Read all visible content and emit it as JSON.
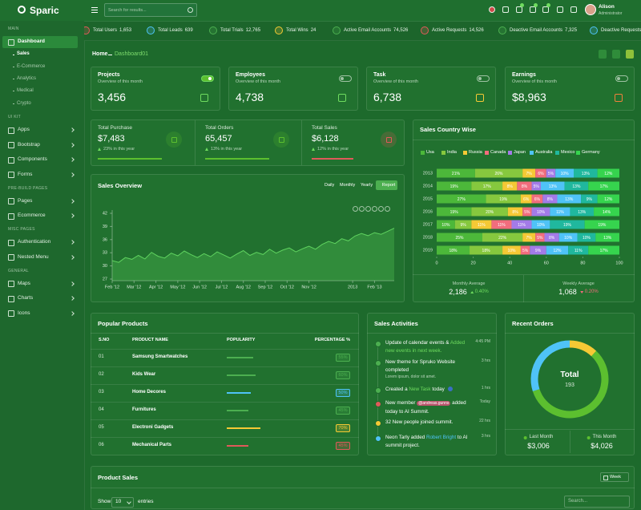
{
  "header": {
    "brand": "Sparic",
    "search_placeholder": "Search for results...",
    "user_name": "Alison",
    "user_role": "Administrator"
  },
  "sidebar": {
    "sections": [
      {
        "title": "MAIN",
        "items": [
          {
            "label": "Dashboard",
            "children": [
              "Sales",
              "E-Commerce",
              "Analytics",
              "Medical",
              "Crypto"
            ]
          }
        ]
      },
      {
        "title": "UI KIT",
        "items": [
          {
            "label": "Apps"
          },
          {
            "label": "Bootstrap"
          },
          {
            "label": "Components"
          },
          {
            "label": "Forms"
          }
        ]
      },
      {
        "title": "PRE-BUILD PAGES",
        "items": [
          {
            "label": "Pages"
          },
          {
            "label": "Ecommerce"
          }
        ]
      },
      {
        "title": "MISC PAGES",
        "items": [
          {
            "label": "Authentication"
          },
          {
            "label": "Nested Menu"
          }
        ]
      },
      {
        "title": "GENERAL",
        "items": [
          {
            "label": "Maps"
          },
          {
            "label": "Charts"
          },
          {
            "label": "Icons"
          }
        ]
      }
    ]
  },
  "ticker": [
    {
      "label": "Total Users",
      "value": "1,653"
    },
    {
      "label": "Total Leads",
      "value": "639"
    },
    {
      "label": "Total Trials",
      "value": "12,765"
    },
    {
      "label": "Total Wins",
      "value": "24"
    },
    {
      "label": "Active Email Accounts",
      "value": "74,526"
    },
    {
      "label": "Active Requests",
      "value": "14,526"
    },
    {
      "label": "Deactive Email Accounts",
      "value": "7,325"
    },
    {
      "label": "Deactive Requests"
    }
  ],
  "breadcrumb": {
    "home": "Home",
    "current": "Dashboard01"
  },
  "stat_cards": [
    {
      "title": "Projects",
      "subtitle": "Overview of this month",
      "value": "3,456"
    },
    {
      "title": "Employees",
      "subtitle": "Overview of this month",
      "value": "4,738"
    },
    {
      "title": "Task",
      "subtitle": "Overview of this month",
      "value": "6,738"
    },
    {
      "title": "Earnings",
      "subtitle": "Overview of this month",
      "value": "$8,963"
    }
  ],
  "summary": [
    {
      "title": "Total Purchase",
      "value": "$7,483",
      "change": "23% in this year"
    },
    {
      "title": "Total Orders",
      "value": "65,457",
      "change": "13% in this year"
    },
    {
      "title": "Total Sales",
      "value": "$6,128",
      "change": "12% in this year"
    }
  ],
  "sales_overview": {
    "type": "area",
    "title": "Sales Overview",
    "tabs": [
      "Daily",
      "Monthly",
      "Yearly"
    ],
    "button": "Report",
    "x": [
      0,
      0.3,
      0.6,
      0.9,
      1.2,
      1.5,
      1.8,
      2.1,
      2.4,
      2.7,
      3,
      3.3,
      3.6,
      3.9,
      4.2,
      4.5,
      4.8,
      5.1,
      5.4,
      5.7,
      6,
      6.3,
      6.6,
      6.9,
      7.2,
      7.5,
      7.8,
      8.1,
      8.4,
      8.7,
      9,
      9.3,
      9.6,
      9.9,
      10.2,
      10.5,
      10.8,
      11.1,
      11.4,
      11.7,
      12,
      12.3,
      12.6,
      12.9
    ],
    "values": [
      31.2,
      30.8,
      31.9,
      31.5,
      32.4,
      31.6,
      33.1,
      32.2,
      31.8,
      32.9,
      32.3,
      33.4,
      32.6,
      31.9,
      32.8,
      32.1,
      33.2,
      32.5,
      31.8,
      32.7,
      33.5,
      32.4,
      33.1,
      32.6,
      33.8,
      32.9,
      33.6,
      34.1,
      33.2,
      33.9,
      34.5,
      33.8,
      34.9,
      35.6,
      35.1,
      36.2,
      35.7,
      36.8,
      37.4,
      36.9,
      37.6,
      37.2,
      37.9,
      38.6
    ],
    "color": "#5fd35f",
    "xlim": [
      0,
      12.9
    ],
    "xticks": [
      {
        "value": 0,
        "label": "Feb '12"
      },
      {
        "value": 1,
        "label": "Mar '12"
      },
      {
        "value": 2,
        "label": "Apr '12"
      },
      {
        "value": 3,
        "label": "May '12"
      },
      {
        "value": 4,
        "label": "Jun '12"
      },
      {
        "value": 5,
        "label": "Jul '12"
      },
      {
        "value": 6,
        "label": "Aug '12"
      },
      {
        "value": 7,
        "label": "Sep '12"
      },
      {
        "value": 8,
        "label": "Oct '12"
      },
      {
        "value": 9,
        "label": "Nov '12"
      },
      {
        "value": 11,
        "label": "2013"
      },
      {
        "value": 12,
        "label": "Feb '13"
      }
    ],
    "ylim": [
      27,
      42
    ],
    "yticks": [
      27,
      30,
      33,
      36,
      39,
      42
    ]
  },
  "sales_country": {
    "type": "stacked_bar",
    "orientation": "horizontal",
    "title": "Sales Country Wise",
    "categories": [
      "2013",
      "2014",
      "2015",
      "2016",
      "2017",
      "2018",
      "2019"
    ],
    "series": [
      {
        "name": "Usa",
        "color": "#4cb83a",
        "values": [
          21,
          19,
          27,
          19,
          10,
          25,
          18
        ],
        "value_labels": [
          "21%",
          "19%",
          "27%",
          "19%",
          "10%",
          "25%",
          "18%"
        ]
      },
      {
        "name": "India",
        "color": "#86c83e",
        "values": [
          26,
          17,
          19,
          20,
          9,
          22,
          18
        ],
        "value_labels": [
          "26%",
          "17%",
          "19%",
          "20%",
          "9%",
          "22%",
          "18%"
        ]
      },
      {
        "name": "Russia",
        "color": "#f5c935",
        "values": [
          7,
          8,
          6,
          8,
          11,
          7,
          10
        ],
        "value_labels": [
          "7%",
          "8%",
          "6%",
          "8%",
          "11%",
          "7%",
          "10%"
        ]
      },
      {
        "name": "Canada",
        "color": "#f26d7d",
        "values": [
          6,
          8,
          6,
          5,
          11,
          5,
          5
        ],
        "value_labels": [
          "6%",
          "8%",
          "6%",
          "5%",
          "11%",
          "5%",
          "5%"
        ]
      },
      {
        "name": "Japan",
        "color": "#a37be8",
        "values": [
          5,
          5,
          8,
          10,
          11,
          8,
          9
        ],
        "value_labels": [
          "5%",
          "5%",
          "8%",
          "10%",
          "11%",
          "8%",
          "9%"
        ]
      },
      {
        "name": "Australia",
        "color": "#4fc3f7",
        "values": [
          10,
          13,
          13,
          11,
          10,
          10,
          12
        ],
        "value_labels": [
          "10%",
          "13%",
          "13%",
          "11%",
          "10%",
          "10%",
          "12%"
        ]
      },
      {
        "name": "Mexico",
        "color": "#20b89e",
        "values": [
          13,
          13,
          9,
          13,
          19,
          10,
          11
        ],
        "value_labels": [
          "13%",
          "13%",
          "9%",
          "13%",
          "19%",
          "10%",
          "11%"
        ]
      },
      {
        "name": "Germany",
        "color": "#36d44e",
        "values": [
          12,
          17,
          12,
          14,
          19,
          13,
          17
        ],
        "value_labels": [
          "12%",
          "17%",
          "12%",
          "14%",
          "19%",
          "13%",
          "17%"
        ]
      }
    ],
    "xlim": [
      0,
      100
    ],
    "xticks": [
      0,
      20,
      40,
      60,
      80,
      100
    ],
    "stats": [
      {
        "label": "Monthly Average",
        "value": "2,186",
        "change": "0.40%",
        "direction": "up"
      },
      {
        "label": "Weekly Average",
        "value": "1,068",
        "change": "0.20%",
        "direction": "down"
      }
    ]
  },
  "popular_products": {
    "title": "Popular Products",
    "columns": [
      "S.NO",
      "PRODUCT NAME",
      "POPULARITY",
      "PERCENTAGE %"
    ],
    "rows": [
      {
        "sno": "01",
        "name": "Samsung Smartwatches",
        "percentage": 55,
        "label": "55%",
        "color": "#4caf50"
      },
      {
        "sno": "02",
        "name": "Kids Wear",
        "percentage": 60,
        "label": "60%",
        "color": "#4caf50"
      },
      {
        "sno": "03",
        "name": "Home Decores",
        "percentage": 50,
        "label": "50%",
        "color": "#4fc3f7"
      },
      {
        "sno": "04",
        "name": "Furnitures",
        "percentage": 45,
        "label": "45%",
        "color": "#4caf50"
      },
      {
        "sno": "05",
        "name": "Electroni Gadgets",
        "percentage": 70,
        "label": "70%",
        "color": "#f5c935"
      },
      {
        "sno": "06",
        "name": "Mechanical Parts",
        "percentage": 45,
        "label": "45%",
        "color": "#e05a5a"
      }
    ]
  },
  "sales_activities": {
    "title": "Sales Activities",
    "items": [
      {
        "parts": [
          {
            "text": "Update of calendar events & "
          },
          {
            "text": "Added new events in next week.",
            "color": "#6fdc5f"
          }
        ],
        "time": "4:45 PM",
        "dot": "#4caf50"
      },
      {
        "parts": [
          {
            "text": "New theme for Spruko Website completed"
          }
        ],
        "note": "Lorem ipsum, dolor sit amet.",
        "time": "3 hrs",
        "dot": "#4caf50"
      },
      {
        "parts": [
          {
            "text": "Created a "
          },
          {
            "text": "New Task",
            "color": "#6fdc5f"
          },
          {
            "text": " today"
          }
        ],
        "time": "1 hrs",
        "dot": "#4caf50"
      },
      {
        "parts": [
          {
            "text": "New member "
          },
          {
            "text": "@andreas.gunns",
            "badge": "#b8546a"
          },
          {
            "text": " added today to AI Summit."
          }
        ],
        "time": "Today",
        "dot": "#e05a5a"
      },
      {
        "parts": [
          {
            "text": "32 New people joined summit."
          }
        ],
        "time": "22 hrs",
        "dot": "#f5c935"
      },
      {
        "parts": [
          {
            "text": "Neon Tarly added "
          },
          {
            "text": "Robert Bright",
            "color": "#4fc3f7"
          },
          {
            "text": " to AI summit project."
          }
        ],
        "time": "3 hrs",
        "dot": "#4fc3f7"
      }
    ]
  },
  "recent_orders": {
    "title": "Recent Orders",
    "center_label": "Total",
    "center_value": 193,
    "donut": {
      "values": [
        12,
        58,
        30
      ],
      "colors": [
        "#f5c935",
        "#5cbf2f",
        "#4fc3f7"
      ]
    },
    "last_month": {
      "label": "Last Month",
      "value": "$3,006"
    },
    "this_month": {
      "label": "This Month",
      "value": "$4,026"
    }
  },
  "product_sales": {
    "title": "Product Sales",
    "period": "Week",
    "show": "Show",
    "page_size": 10,
    "entries": "entries",
    "search_placeholder": "Search..."
  }
}
